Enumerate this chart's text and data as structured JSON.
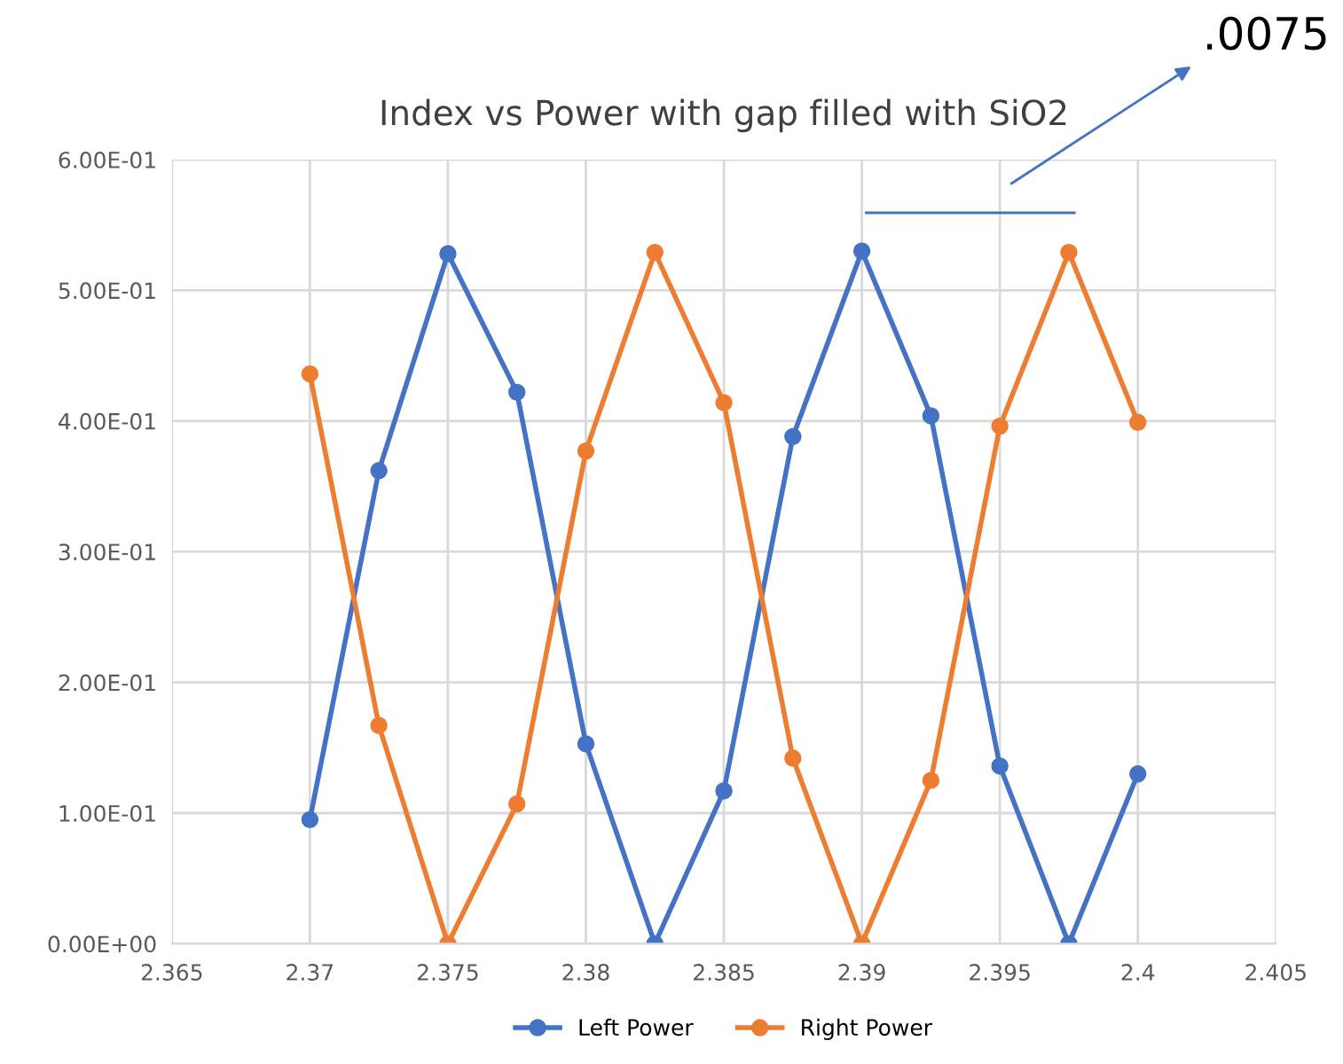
{
  "chart_data": {
    "type": "line",
    "title": "Index vs Power with gap filled with SiO2",
    "x": [
      2.37,
      2.3725,
      2.375,
      2.3775,
      2.38,
      2.3825,
      2.385,
      2.3875,
      2.39,
      2.3925,
      2.395,
      2.3975,
      2.4
    ],
    "series": [
      {
        "name": "Left Power",
        "color": "#4472c4",
        "values": [
          0.095,
          0.362,
          0.528,
          0.422,
          0.153,
          0.0,
          0.117,
          0.388,
          0.53,
          0.404,
          0.136,
          0.0,
          0.13
        ]
      },
      {
        "name": "Right Power",
        "color": "#ed7d31",
        "values": [
          0.436,
          0.167,
          0.0,
          0.107,
          0.377,
          0.529,
          0.414,
          0.142,
          0.0,
          0.125,
          0.396,
          0.529,
          0.399
        ]
      }
    ],
    "xlim": [
      2.365,
      2.405
    ],
    "xticks": [
      2.365,
      2.37,
      2.375,
      2.38,
      2.385,
      2.39,
      2.395,
      2.4,
      2.405
    ],
    "ylim": [
      0,
      0.6
    ],
    "yticks": [
      {
        "value": 0,
        "label": "0.00E+00"
      },
      {
        "value": 0.1,
        "label": "1.00E-01"
      },
      {
        "value": 0.2,
        "label": "2.00E-01"
      },
      {
        "value": 0.3,
        "label": "3.00E-01"
      },
      {
        "value": 0.4,
        "label": "4.00E-01"
      },
      {
        "value": 0.5,
        "label": "5.00E-01"
      },
      {
        "value": 0.6,
        "label": "6.00E-01"
      }
    ],
    "annotations": [
      ".0075"
    ],
    "grid": true,
    "legend": "bottom",
    "marker": "circle",
    "line_style": "solid"
  }
}
